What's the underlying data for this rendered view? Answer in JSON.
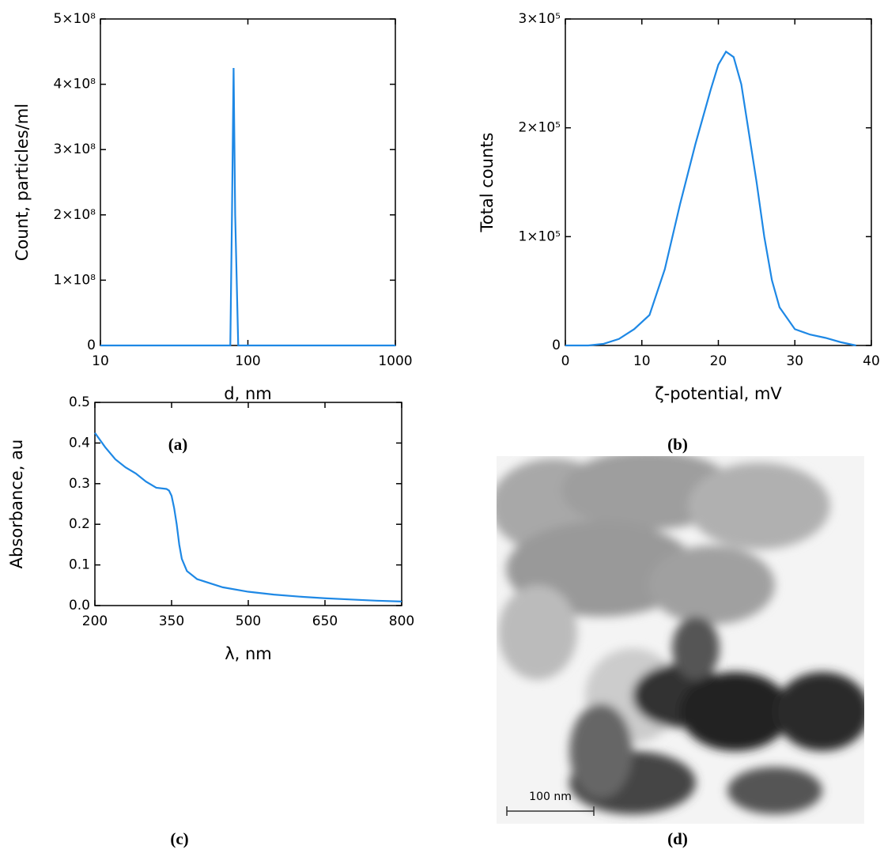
{
  "chart_data": [
    {
      "type": "line",
      "caption": "(a)",
      "xlabel": "d, nm",
      "ylabel": "Count, particles/ml",
      "xscale": "log",
      "xlim": [
        10,
        1000
      ],
      "xticks": [
        10,
        100,
        1000
      ],
      "ylim": [
        0,
        500000000
      ],
      "yticks": [
        0,
        {
          "value": 100000000,
          "label": "1×10⁸"
        },
        {
          "value": 200000000,
          "label": "2×10⁸"
        },
        {
          "value": 300000000,
          "label": "3×10⁸"
        },
        {
          "value": 400000000,
          "label": "4×10⁸"
        },
        {
          "value": 500000000,
          "label": "5×10⁸"
        }
      ],
      "series": [
        {
          "color": "#1e88e5",
          "x": [
            10,
            76,
            78,
            80,
            82,
            86,
            1000
          ],
          "values": [
            0,
            0,
            200000000,
            425000000,
            200000000,
            0,
            0
          ]
        }
      ]
    },
    {
      "type": "line",
      "caption": "(b)",
      "xlabel": "ζ-potential, mV",
      "ylabel": "Total counts",
      "xlim": [
        0,
        40
      ],
      "xticks": [
        0,
        10,
        20,
        30,
        40
      ],
      "ylim": [
        0,
        300000
      ],
      "yticks": [
        0,
        {
          "value": 100000,
          "label": "1×10⁵"
        },
        {
          "value": 200000,
          "label": "2×10⁵"
        },
        {
          "value": 300000,
          "label": "3×10⁵"
        }
      ],
      "series": [
        {
          "color": "#1e88e5",
          "x": [
            0,
            3,
            5,
            7,
            9,
            11,
            13,
            15,
            17,
            19,
            20,
            21,
            22,
            23,
            24,
            25,
            26,
            27,
            28,
            30,
            32,
            34,
            36,
            38
          ],
          "values": [
            0,
            0,
            1500,
            6000,
            15000,
            28000,
            70000,
            130000,
            185000,
            235000,
            258000,
            270000,
            265000,
            240000,
            195000,
            150000,
            100000,
            60000,
            35000,
            15000,
            10000,
            7000,
            3000,
            0
          ]
        }
      ]
    },
    {
      "type": "line",
      "caption": "(c)",
      "xlabel": "λ, nm",
      "ylabel": "Absorbance, au",
      "xlim": [
        200,
        800
      ],
      "xticks": [
        200,
        350,
        500,
        650,
        800
      ],
      "ylim": [
        0,
        0.5
      ],
      "yticks": [
        {
          "value": 0,
          "label": "0.0"
        },
        0.1,
        0.2,
        0.3,
        0.4,
        0.5
      ],
      "series": [
        {
          "color": "#1e88e5",
          "x": [
            200,
            220,
            240,
            260,
            280,
            300,
            320,
            340,
            345,
            350,
            355,
            360,
            365,
            370,
            380,
            400,
            450,
            500,
            550,
            600,
            650,
            700,
            750,
            800
          ],
          "values": [
            0.425,
            0.39,
            0.36,
            0.34,
            0.325,
            0.305,
            0.29,
            0.287,
            0.283,
            0.27,
            0.24,
            0.2,
            0.15,
            0.115,
            0.085,
            0.065,
            0.045,
            0.034,
            0.027,
            0.022,
            0.018,
            0.015,
            0.012,
            0.01
          ]
        }
      ]
    }
  ],
  "image_panel": {
    "caption": "(d)",
    "scale_bar": "100 nm"
  }
}
